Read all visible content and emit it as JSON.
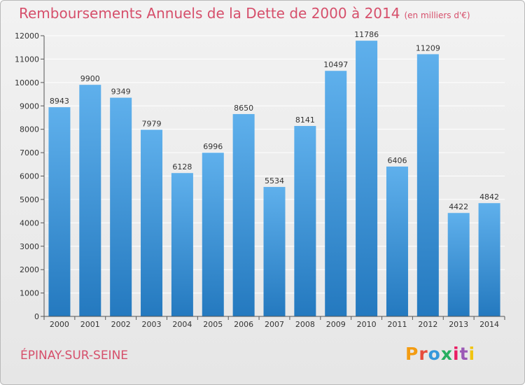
{
  "title": "Remboursements Annuels de la Dette de 2000 à 2014",
  "subtitle": "(en milliers d'€)",
  "city": "ÉPINAY-SUR-SEINE",
  "logo": {
    "text": "Proxiti",
    "colors": [
      "#f39c12",
      "#e74c3c",
      "#3498db",
      "#27ae60",
      "#e91e63",
      "#9b59b6",
      "#f1c40f"
    ]
  },
  "colors": {
    "title": "#d64f6b",
    "bar_top": "#5fb0ec",
    "bar_bottom": "#2479bf",
    "grid": "#ffffff",
    "axis": "#555555"
  },
  "chart_data": {
    "type": "bar",
    "title": "Remboursements Annuels de la Dette de 2000 à 2014",
    "xlabel": "",
    "ylabel": "",
    "ylim": [
      0,
      12000
    ],
    "yticks": [
      0,
      1000,
      2000,
      3000,
      4000,
      5000,
      6000,
      7000,
      8000,
      9000,
      10000,
      11000,
      12000
    ],
    "grid": true,
    "categories": [
      "2000",
      "2001",
      "2002",
      "2003",
      "2004",
      "2005",
      "2006",
      "2007",
      "2008",
      "2009",
      "2010",
      "2011",
      "2012",
      "2013",
      "2014"
    ],
    "values": [
      8943,
      9900,
      9349,
      7979,
      6128,
      6996,
      8650,
      5534,
      8141,
      10497,
      11786,
      6406,
      11209,
      4422,
      4842
    ]
  }
}
